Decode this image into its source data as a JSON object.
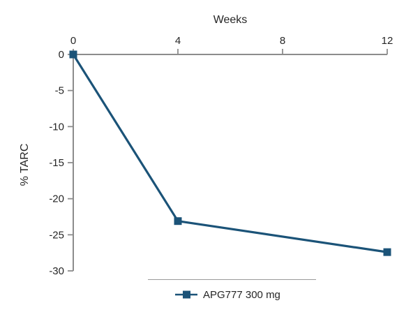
{
  "chart_data": {
    "type": "line",
    "title": "",
    "xlabel": "Weeks",
    "ylabel": "% TARC",
    "xlim": [
      0,
      12
    ],
    "ylim": [
      -30,
      0
    ],
    "x_ticks": [
      0,
      4,
      8,
      12
    ],
    "y_ticks": [
      0,
      -5,
      -10,
      -15,
      -20,
      -25,
      -30
    ],
    "x_axis_position": "top",
    "grid": false,
    "legend_position": "bottom-center",
    "series": [
      {
        "name": "APG777 300 mg",
        "x": [
          0,
          4,
          12
        ],
        "values": [
          0,
          -23.1,
          -27.4
        ],
        "color": "#1B5378",
        "marker": "square"
      }
    ],
    "colors": {
      "accent": "#1B5378",
      "axis": "#8C8C8C",
      "text": "#262626",
      "legend_divider": "#9A9A9A"
    }
  }
}
